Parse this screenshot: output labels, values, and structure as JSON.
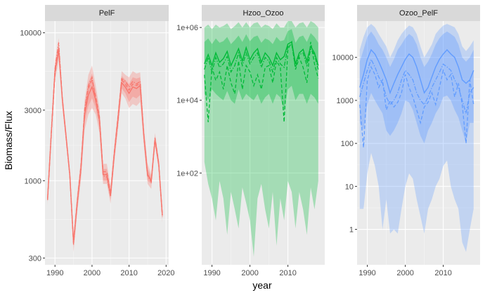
{
  "chart_data": {
    "type": "line",
    "xlabel": "year",
    "ylabel": "Biomass/Flux",
    "x": [
      1988,
      1989,
      1990,
      1991,
      1992,
      1993,
      1994,
      1995,
      1996,
      1997,
      1998,
      1999,
      2000,
      2001,
      2002,
      2003,
      2004,
      2005,
      2006,
      2007,
      2008,
      2009,
      2010,
      2011,
      2012,
      2013,
      2014,
      2015,
      2016,
      2017,
      2018,
      2019
    ],
    "colors": {
      "PelF": "#F8766D",
      "Hzoo_Ozoo": "#00BA38",
      "Ozoo_PelF": "#619CFF"
    },
    "panels": [
      {
        "title": "PelF",
        "y_scale": "log10",
        "ylim": [
          270,
          12000
        ],
        "y_ticks": [
          300,
          1000,
          3000,
          10000
        ],
        "y_tick_labels": [
          "300",
          "1000",
          "3000",
          "10000"
        ],
        "x_ticks": [
          1990,
          2000,
          2010,
          2020
        ],
        "x_tick_labels": [
          "1990",
          "2000",
          "2010",
          "2020"
        ],
        "xlim": [
          1987.3,
          2020.7
        ],
        "x": [
          1988,
          1989,
          1990,
          1991,
          1992,
          1993,
          1994,
          1995,
          1996,
          1997,
          1998,
          1999,
          2000,
          2001,
          2002,
          2003,
          2004,
          2005,
          2006,
          2007,
          2008,
          2009,
          2010,
          2011,
          2012,
          2013,
          2014,
          2015,
          2016,
          2017,
          2018,
          2019
        ],
        "median": [
          750,
          2100,
          5500,
          7600,
          3500,
          2000,
          1100,
          380,
          700,
          1200,
          2800,
          3800,
          4300,
          3500,
          2600,
          1100,
          1100,
          800,
          1500,
          2600,
          4600,
          4300,
          3900,
          4300,
          4200,
          4400,
          2000,
          1100,
          1000,
          1900,
          1300,
          580
        ],
        "lines": [
          {
            "style": "dashed",
            "values": [
              740,
              2050,
              5200,
              7900,
              3600,
              2000,
              1100,
              390,
              720,
              1250,
              2950,
              4200,
              4800,
              3700,
              2700,
              1150,
              1150,
              820,
              1550,
              2700,
              4800,
              4500,
              4100,
              4500,
              4400,
              4550,
              2050,
              1100,
              1000,
              1950,
              1320,
              590
            ]
          },
          {
            "style": "dotdash",
            "values": [
              760,
              2150,
              5700,
              8600,
              3450,
              1950,
              1080,
              370,
              690,
              1180,
              3050,
              4400,
              5000,
              3450,
              2550,
              1080,
              1060,
              780,
              1480,
              2500,
              4900,
              4700,
              4300,
              4700,
              4500,
              4700,
              1980,
              1080,
              980,
              1880,
              1280,
              570
            ]
          }
        ],
        "inner_band": {
          "lower": [
            720,
            2000,
            5000,
            7000,
            3300,
            1900,
            1050,
            360,
            650,
            1100,
            2500,
            3200,
            3600,
            3100,
            2300,
            1000,
            1000,
            750,
            1400,
            2400,
            4200,
            3900,
            3400,
            3700,
            3600,
            3800,
            1850,
            1000,
            950,
            1800,
            1250,
            560
          ],
          "upper": [
            780,
            2200,
            6000,
            8300,
            3700,
            2100,
            1150,
            400,
            760,
            1300,
            3200,
            4600,
            5300,
            4000,
            2900,
            1200,
            1200,
            860,
            1600,
            2800,
            5100,
            4800,
            4500,
            5000,
            4900,
            5000,
            2150,
            1200,
            1050,
            2000,
            1350,
            610
          ]
        },
        "outer_band": {
          "lower": [
            690,
            1900,
            4700,
            6500,
            3100,
            1800,
            1000,
            330,
            600,
            1000,
            2200,
            2800,
            3100,
            2800,
            2100,
            950,
            950,
            700,
            1300,
            2200,
            3900,
            3600,
            3100,
            3300,
            3200,
            3400,
            1700,
            950,
            880,
            1700,
            1200,
            520
          ],
          "upper": [
            820,
            2300,
            6500,
            9200,
            3900,
            2200,
            1200,
            430,
            820,
            1400,
            3500,
            5200,
            6000,
            4400,
            3100,
            1300,
            1300,
            920,
            1700,
            3000,
            5500,
            5200,
            5000,
            5500,
            5300,
            5400,
            2300,
            1300,
            1100,
            2100,
            1420,
            650
          ]
        }
      },
      {
        "title": "Hzoo_Ozoo",
        "y_scale": "log10",
        "ylim": [
          0.3,
          1500000
        ],
        "y_ticks": [
          100,
          10000,
          1000000
        ],
        "y_tick_labels": [
          "1e+02",
          "1e+04",
          "1e+06"
        ],
        "x_ticks": [
          1990,
          2000,
          2010
        ],
        "x_tick_labels": [
          "1990",
          "2000",
          "2010"
        ],
        "xlim": [
          1987.3,
          2019.7
        ],
        "x": [
          1988,
          1989,
          1990,
          1991,
          1992,
          1993,
          1994,
          1995,
          1996,
          1997,
          1998,
          1999,
          2000,
          2001,
          2002,
          2003,
          2004,
          2005,
          2006,
          2007,
          2008,
          2009,
          2010,
          2011,
          2012,
          2013,
          2014,
          2015,
          2016,
          2017,
          2018
        ],
        "median": [
          100000,
          180000,
          90000,
          200000,
          110000,
          140000,
          220000,
          90000,
          150000,
          260000,
          120000,
          280000,
          130000,
          200000,
          260000,
          110000,
          200000,
          150000,
          90000,
          200000,
          130000,
          160000,
          350000,
          400000,
          100000,
          200000,
          250000,
          120000,
          300000,
          200000,
          90000
        ],
        "lines": [
          {
            "style": "dashed",
            "values": [
              50000,
              2500,
              80000,
              35000,
              60000,
              20000,
              90000,
              30000,
              15000,
              120000,
              20000,
              90000,
              60000,
              25000,
              50000,
              20000,
              80000,
              90000,
              30000,
              120000,
              80000,
              2500,
              250000,
              400000,
              70000,
              150000,
              80000,
              30000,
              400000,
              100000,
              40000
            ]
          },
          {
            "style": "dotdash",
            "values": [
              70000,
              150000,
              60000,
              150000,
              80000,
              100000,
              160000,
              60000,
              90000,
              200000,
              90000,
              200000,
              100000,
              150000,
              200000,
              80000,
              150000,
              120000,
              60000,
              150000,
              100000,
              80000,
              300000,
              350000,
              80000,
              180000,
              200000,
              90000,
              250000,
              180000,
              70000
            ]
          }
        ],
        "inner_band": {
          "lower": [
            15000,
            10000,
            20000,
            15000,
            12000,
            10000,
            18000,
            10000,
            8000,
            20000,
            10000,
            15000,
            12000,
            10000,
            15000,
            8000,
            12000,
            15000,
            8000,
            15000,
            12000,
            5000,
            20000,
            25000,
            10000,
            15000,
            15000,
            8000,
            15000,
            12000,
            8000
          ],
          "upper": [
            400000,
            500000,
            350000,
            500000,
            380000,
            420000,
            550000,
            350000,
            450000,
            600000,
            400000,
            650000,
            420000,
            550000,
            600000,
            380000,
            500000,
            450000,
            350000,
            550000,
            420000,
            450000,
            800000,
            900000,
            380000,
            550000,
            600000,
            400000,
            700000,
            550000,
            380000
          ]
        },
        "outer_band": {
          "lower": [
            200,
            50,
            20,
            5,
            60,
            20,
            2,
            30,
            10,
            3,
            40,
            15,
            5,
            0.5,
            20,
            50,
            10,
            3,
            30,
            1,
            20,
            5,
            60,
            30,
            3,
            30,
            10,
            2,
            40,
            10,
            60
          ],
          "upper": [
            1000000,
            1200000,
            900000,
            1200000,
            1000000,
            1100000,
            1300000,
            900000,
            1100000,
            1400000,
            1000000,
            1400000,
            1000000,
            1300000,
            1400000,
            1000000,
            1200000,
            1100000,
            900000,
            1300000,
            1000000,
            1000000,
            1500000,
            1500000,
            1000000,
            1300000,
            1400000,
            1000000,
            1500000,
            1300000,
            1000000
          ]
        }
      },
      {
        "title": "Ozoo_PelF",
        "y_scale": "log10",
        "ylim": [
          0.15,
          70000
        ],
        "y_ticks": [
          1,
          10,
          100,
          1000,
          10000
        ],
        "y_tick_labels": [
          "1",
          "10",
          "100",
          "1000",
          "10000"
        ],
        "x_ticks": [
          1990,
          2000,
          2010
        ],
        "x_tick_labels": [
          "1990",
          "2000",
          "2010"
        ],
        "xlim": [
          1987.3,
          2019.7
        ],
        "x": [
          1988,
          1989,
          1990,
          1991,
          1992,
          1993,
          1994,
          1995,
          1996,
          1997,
          1998,
          1999,
          2000,
          2001,
          2002,
          2003,
          2004,
          2005,
          2006,
          2007,
          2008,
          2009,
          2010,
          2011,
          2012,
          2013,
          2014,
          2015,
          2016,
          2017,
          2018
        ],
        "median": [
          2000,
          4000,
          9000,
          15000,
          12000,
          8000,
          5000,
          3000,
          1500,
          2500,
          4000,
          6000,
          9000,
          12000,
          10000,
          6000,
          3000,
          1500,
          2000,
          3500,
          6000,
          9000,
          12000,
          15000,
          12000,
          10000,
          6000,
          3000,
          2500,
          3000,
          5000
        ],
        "lines": [
          {
            "style": "dashed",
            "values": [
              800,
              80,
              3000,
              6000,
              4000,
              2000,
              3000,
              600,
              1000,
              700,
              900,
              1500,
              4000,
              2000,
              1200,
              600,
              300,
              700,
              900,
              1500,
              800,
              2000,
              5000,
              3000,
              4000,
              1200,
              2500,
              800,
              100,
              3000,
              800
            ]
          },
          {
            "style": "dotdash",
            "values": [
              1200,
              2500,
              5000,
              9000,
              6000,
              3500,
              2500,
              1200,
              800,
              1000,
              1500,
              3000,
              5000,
              4000,
              3000,
              1500,
              1000,
              800,
              1200,
              2000,
              3000,
              4500,
              7000,
              6000,
              5000,
              3000,
              2000,
              1000,
              500,
              1500,
              2000
            ]
          }
        ],
        "inner_band": {
          "lower": [
            300,
            200,
            800,
            1500,
            1000,
            700,
            500,
            200,
            150,
            200,
            300,
            500,
            1000,
            900,
            600,
            300,
            150,
            100,
            200,
            300,
            500,
            700,
            1200,
            1300,
            1000,
            600,
            400,
            200,
            100,
            300,
            300
          ],
          "upper": [
            8000,
            15000,
            30000,
            40000,
            30000,
            20000,
            15000,
            10000,
            6000,
            9000,
            15000,
            20000,
            28000,
            35000,
            30000,
            20000,
            10000,
            6000,
            8000,
            12000,
            20000,
            28000,
            35000,
            40000,
            35000,
            30000,
            20000,
            10000,
            8000,
            10000,
            15000
          ]
        },
        "outer_band": {
          "lower": [
            3,
            3,
            20,
            60,
            30,
            10,
            1,
            5,
            0.8,
            1,
            0.8,
            3,
            10,
            20,
            15,
            5,
            2,
            0.8,
            3,
            5,
            10,
            15,
            30,
            40,
            10,
            5,
            3,
            0.5,
            0.3,
            1,
            3
          ],
          "upper": [
            15000,
            30000,
            50000,
            60000,
            50000,
            35000,
            25000,
            18000,
            10000,
            15000,
            25000,
            35000,
            45000,
            55000,
            50000,
            35000,
            18000,
            10000,
            14000,
            20000,
            35000,
            45000,
            55000,
            60000,
            55000,
            50000,
            35000,
            18000,
            14000,
            18000,
            25000
          ]
        }
      }
    ]
  }
}
